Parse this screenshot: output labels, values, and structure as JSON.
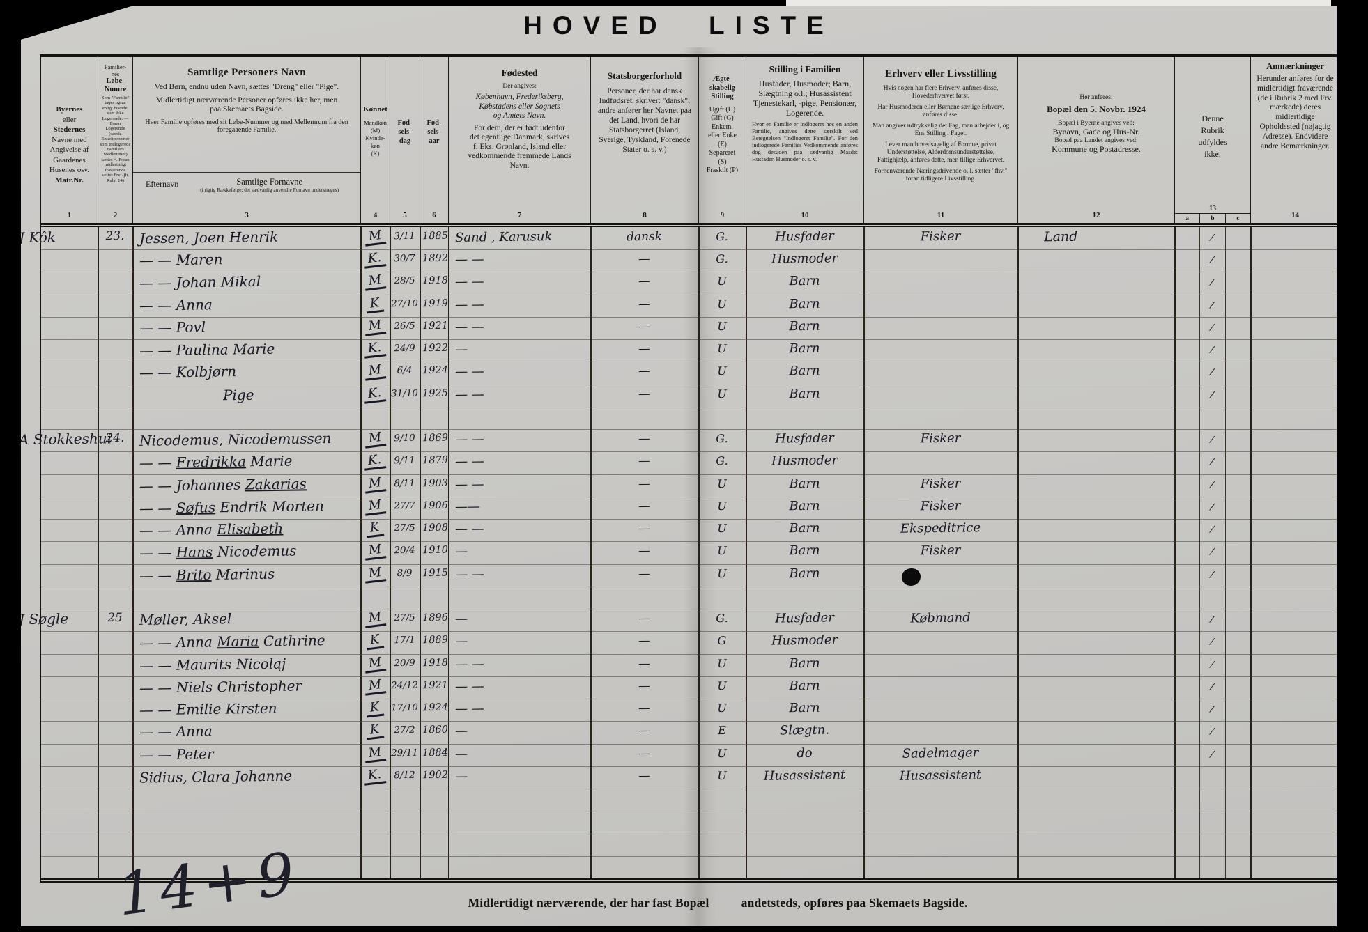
{
  "title": "HOVED LISTE",
  "footer": {
    "text1": "Midlertidigt nærværende, der har fast Bopæl",
    "text2": "andetsteds, opføres paa Skemaets Bagside.",
    "margin_note": "14+9"
  },
  "ink_color": "#191923",
  "paper_color": "#c9c8c5",
  "header": {
    "numbers": [
      "1",
      "2",
      "3",
      "4",
      "5",
      "6",
      "7",
      "8",
      "9",
      "10",
      "11",
      "12",
      "13",
      "14"
    ],
    "sub13": [
      "a",
      "b",
      "c"
    ],
    "c1": {
      "t1": "Byernes",
      "t2": "eller",
      "t3": "Stedernes",
      "t4": "Navne med",
      "t5": "Angivelse af",
      "t6": "Gaardenes",
      "t7": "Husenes osv.",
      "t8": "Matr.Nr."
    },
    "c2": {
      "t1": "Familier-",
      "t2": "nes",
      "t3": "Løbe-",
      "t4": "Numre",
      "small": "Som \"Familie\" tages ogsaa enligt boende, som ikke Logerende. — Foran Logerende (særsk. Enkeltpersoner som indlogerede Familiers Medlemmer) sættes ×. Foran midlertidigt fraværende sættes Frv. (jfr. Rubr. 14)"
    },
    "c3": {
      "title": "Samtlige Personers Navn",
      "p1": "Ved Børn, endnu uden Navn, sættes \"Dreng\" eller \"Pige\".",
      "p2": "Midlertidigt nærværende Personer opføres ikke her, men paa Skemaets Bagside.",
      "p3": "Hver Familie opføres med sit Løbe-Nummer og med Mellemrum fra den foregaaende Familie.",
      "sub1": "Efternavn",
      "sub2": "Samtlige Fornavne",
      "sub2small": "(i rigtig Rækkefølge; det sædvanlig anvendte Fornavn understreges)"
    },
    "c4": {
      "t1": "Kønnet",
      "t2": "Mandkøn",
      "t3": "(M)",
      "t4": "Kvinde-",
      "t5": "køn",
      "t6": "(K)"
    },
    "c5": {
      "t1": "Fød-",
      "t2": "sels-",
      "t3": "dag"
    },
    "c6": {
      "t1": "Fød-",
      "t2": "sels-",
      "t3": "aar"
    },
    "c7": {
      "title": "Fødested",
      "s1": "Der angives:",
      "s2": "København, Frederiksberg,",
      "s3": "Købstadens eller Sognets",
      "s4": "og Amtets Navn.",
      "s5": "For dem, der er født udenfor",
      "s6": "det egentlige Danmark, skrives",
      "s7": "f. Eks. Grønland, Island eller",
      "s8": "vedkommende fremmede Lands",
      "s9": "Navn."
    },
    "c8": {
      "title": "Statsborgerforhold",
      "body": "Personer, der har dansk Indfødsret, skriver: \"dansk\"; andre anfører her Navnet paa det Land, hvori de har Statsborgerret (Island, Sverige, Tyskland, Forenede Stater o. s. v.)"
    },
    "c9": {
      "t1": "Ægte-",
      "t2": "skabelig",
      "t3": "Stilling",
      "t4": "Ugift (U)",
      "t5": "Gift (G)",
      "t6": "Enkem.",
      "t7": "eller Enke",
      "t8": "(E)",
      "t9": "Separeret",
      "t10": "(S)",
      "t11": "Fraskilt (P)"
    },
    "c10": {
      "title": "Stilling i Familien",
      "p1": "Husfader, Husmoder; Barn, Slægtning o.l.; Husassistent Tjenestekarl, -pige, Pensionær, Logerende.",
      "p2": "Hvor en Familie er indlogeret hos en anden Familie, angives dette særskilt ved Betegnelsen \"Indlogeret Familie\". For den indlogerede Families Vedkommende anføres dog desuden paa sædvanlig Maade: Husfader, Husmoder o. s. v."
    },
    "c11": {
      "title": "Erhverv eller Livsstilling",
      "p1": "Hvis nogen har flere Erhverv, anføres disse, Hovederhvervet først.",
      "p2": "Har Husmoderen eller Børnene særlige Erhverv, anføres disse.",
      "p3": "Man angiver udtrykkelig det Fag, man arbejder i, og Ens Stilling i Faget.",
      "p4": "Lever man hovedsagelig af Formue, privat Understøttelse, Alderdomsunderstøttelse, Fattighjælp, anføres dette, men tillige Erhvervet.",
      "p5": "Forhenværende Næringsdrivende o. l. sætter \"fhv.\" foran tidligere Livsstilling."
    },
    "c12": {
      "s1": "Her anføres:",
      "title": "Bopæl den 5. Novbr. 1924",
      "s2": "Bopæl i Byerne angives ved:",
      "s3": "Bynavn, Gade og Hus-Nr.",
      "s4": "Bopæl paa Landet angives ved:",
      "s5": "Kommune og Postadresse."
    },
    "c13": {
      "t1": "Denne",
      "t2": "Rubrik",
      "t3": "udfyldes",
      "t4": "ikke."
    },
    "c14": {
      "title": "Anmærkninger",
      "body": "Herunder anføres for de midlertidigt fraværende (de i Rubrik 2 med Frv. mærkede) deres midlertidige Opholdssted (nøjagtig Adresse). Endvidere andre Bemærkninger."
    }
  },
  "tick_glyph": "/",
  "rows": [
    {
      "place": "J Kôk",
      "no": "23.",
      "name": "Jessen, Joen Henrik",
      "sex": "M",
      "date": "3/11",
      "year": "1885",
      "born": "Sand , Karusuk",
      "cit": "dansk",
      "mar": "G.",
      "fam": "Husfader",
      "occ": "Fisker",
      "res": "Land",
      "tick": true
    },
    {
      "name": "— —  Maren",
      "sex": "K.",
      "date": "30/7",
      "year": "1892",
      "born": "— —",
      "cit": "—",
      "mar": "G.",
      "fam": "Husmoder",
      "tick": true
    },
    {
      "name": "— —  Johan Mikal",
      "sex": "M",
      "date": "28/5",
      "year": "1918",
      "born": "— —",
      "cit": "—",
      "mar": "U",
      "fam": "Barn",
      "tick": true
    },
    {
      "name": "— —  Anna",
      "sex": "K",
      "date": "27/10",
      "year": "1919",
      "born": "— —",
      "cit": "—",
      "mar": "U",
      "fam": "Barn",
      "tick": true
    },
    {
      "name": "— —  Povl",
      "sex": "M",
      "date": "26/5",
      "year": "1921",
      "born": "— —",
      "cit": "—",
      "mar": "U",
      "fam": "Barn",
      "tick": true
    },
    {
      "name": "— —  Paulina Marie",
      "sex": "K.",
      "date": "24/9",
      "year": "1922",
      "born": "—",
      "cit": "—",
      "mar": "U",
      "fam": "Barn",
      "tick": true
    },
    {
      "name": "— —  Kolbjørn",
      "sex": "M",
      "date": "6/4",
      "year": "1924",
      "born": "— —",
      "cit": "—",
      "mar": "U",
      "fam": "Barn",
      "tick": true
    },
    {
      "name": "Pige",
      "indent": 120,
      "sex": "K.",
      "date": "31/10",
      "year": "1925",
      "born": "— —",
      "cit": "—",
      "mar": "U",
      "fam": "Barn",
      "tick": true
    },
    {
      "gap": true
    },
    {
      "place": "A Stokkeshui",
      "no": "24.",
      "name": "Nicodemus, Nicodemussen",
      "sex": "M",
      "date": "9/10",
      "year": "1869",
      "born": "— —",
      "cit": "—",
      "mar": "G.",
      "fam": "Husfader",
      "occ": "Fisker",
      "tick": true
    },
    {
      "name": "— —  Fredrikka Marie",
      "u": "Fredrikka",
      "sex": "K.",
      "date": "9/11",
      "year": "1879",
      "born": "— —",
      "cit": "—",
      "mar": "G.",
      "fam": "Husmoder",
      "tick": true
    },
    {
      "name": "— —  Johannes Zakarias",
      "u": "Zakarias",
      "sex": "M",
      "date": "8/11",
      "year": "1903",
      "born": "— —",
      "cit": "—",
      "mar": "U",
      "fam": "Barn",
      "occ": "Fisker",
      "tick": true
    },
    {
      "name": "— — Søfus Endrik  Morten",
      "u": "Søfus",
      "sex": "M",
      "date": "27/7",
      "year": "1906",
      "born": "——",
      "cit": "—",
      "mar": "U",
      "fam": "Barn",
      "occ": "Fisker",
      "tick": true
    },
    {
      "name": "— —  Anna Elisabeth",
      "u": "Elisabeth",
      "sex": "K",
      "date": "27/5",
      "year": "1908",
      "born": "— —",
      "cit": "—",
      "mar": "U",
      "fam": "Barn",
      "occ": "Ekspeditrice",
      "tick": true
    },
    {
      "name": "— —  Hans Nicodemus",
      "u": "Hans",
      "sex": "M",
      "date": "20/4",
      "year": "1910",
      "born": "—",
      "cit": "—",
      "mar": "U",
      "fam": "Barn",
      "occ": "Fisker",
      "tick": true
    },
    {
      "name": "— —  Brito Marinus",
      "u": "Brito",
      "sex": "M",
      "date": "8/9",
      "year": "1915",
      "born": "— —",
      "cit": "—",
      "mar": "U",
      "fam": "Barn",
      "blot": true,
      "tick": true
    },
    {
      "gap": true
    },
    {
      "place": "J Søgle",
      "no": "25",
      "name": "Møller,  Aksel",
      "sex": "M",
      "date": "27/5",
      "year": "1896",
      "born": "—",
      "cit": "—",
      "mar": "G.",
      "fam": "Husfader",
      "occ": "Købmand",
      "tick": true
    },
    {
      "name": "— —  Anna Maria Cathrine",
      "u": "Maria",
      "sex": "K",
      "date": "17/1",
      "year": "1889",
      "born": "—",
      "cit": "—",
      "mar": "G",
      "fam": "Husmoder",
      "tick": true
    },
    {
      "name": "— —  Maurits Nicolaj",
      "sex": "M",
      "date": "20/9",
      "year": "1918",
      "born": "— —",
      "cit": "—",
      "mar": "U",
      "fam": "Barn",
      "tick": true
    },
    {
      "name": "— —  Niels Christopher",
      "sex": "M",
      "date": "24/12",
      "year": "1921",
      "born": "— —",
      "cit": "—",
      "mar": "U",
      "fam": "Barn",
      "tick": true
    },
    {
      "name": "— —  Emilie Kirsten",
      "sex": "K",
      "date": "17/10",
      "year": "1924",
      "born": "— —",
      "cit": "—",
      "mar": "U",
      "fam": "Barn",
      "tick": true
    },
    {
      "name": "— —  Anna",
      "sex": "K",
      "date": "27/2",
      "year": "1860",
      "born": "—",
      "cit": "—",
      "mar": "E",
      "fam": "Slægtn.",
      "tick": true
    },
    {
      "name": "— —  Peter",
      "sex": "M",
      "date": "29/11",
      "year": "1884",
      "born": "—",
      "cit": "—",
      "mar": "U",
      "fam": "do",
      "occ": "Sadelmager",
      "tick": true
    },
    {
      "name": "Sidius, Clara Johanne",
      "sex": "K.",
      "date": "8/12",
      "year": "1902",
      "born": "—",
      "cit": "—",
      "mar": "U",
      "fam": "Husassistent",
      "occ": "Husassistent"
    },
    {
      "gap": true
    },
    {
      "gap": true
    },
    {
      "gap": true
    },
    {
      "gap": true
    }
  ]
}
